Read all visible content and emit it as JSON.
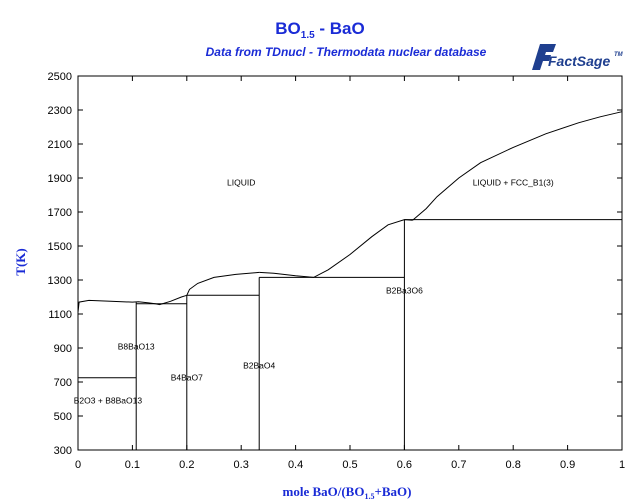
{
  "chart_data": {
    "type": "line",
    "title_main": "BO",
    "title_sub": "1.5",
    "title_rest": " - BaO",
    "subtitle": "Data from TDnucl - Thermodata nuclear database",
    "logo_text": "FactSage",
    "logo_mark": "TM",
    "xlabel_pre": "mole BaO/(BO",
    "xlabel_sub": "1.5",
    "xlabel_post": "+BaO)",
    "ylabel": "T(K)",
    "xlim": [
      0,
      1
    ],
    "ylim": [
      300,
      2500
    ],
    "xticks": [
      "0",
      "0.1",
      "0.2",
      "0.3",
      "0.4",
      "0.5",
      "0.6",
      "0.7",
      "0.8",
      "0.9",
      "1"
    ],
    "yticks": [
      "300",
      "500",
      "700",
      "900",
      "1100",
      "1300",
      "1500",
      "1700",
      "1900",
      "2100",
      "2300",
      "2500"
    ],
    "grid": false,
    "region_labels": [
      {
        "text": "LIQUID",
        "x": 0.3,
        "y": 1855
      },
      {
        "text": "LIQUID + FCC_B1(3)",
        "x": 0.8,
        "y": 1855
      },
      {
        "text": "B2Ba3O6",
        "x": 0.6,
        "y": 1220
      },
      {
        "text": "B8BaO13",
        "x": 0.107,
        "y": 890
      },
      {
        "text": "B2BaO4",
        "x": 0.333,
        "y": 780
      },
      {
        "text": "B4BaO7",
        "x": 0.2,
        "y": 710
      },
      {
        "text": "B2O3 + B8BaO13",
        "x": 0.055,
        "y": 575
      }
    ],
    "series": [
      {
        "values": [
          [
            0.0,
            1110
          ],
          [
            0.002,
            1170
          ],
          [
            0.02,
            1180
          ],
          [
            0.06,
            1175
          ],
          [
            0.1,
            1170
          ],
          [
            0.111,
            1172
          ],
          [
            0.13,
            1165
          ],
          [
            0.142,
            1160
          ],
          [
            0.15,
            1155
          ],
          [
            0.17,
            1175
          ],
          [
            0.19,
            1200
          ],
          [
            0.2,
            1210
          ]
        ]
      },
      {
        "values": [
          [
            0.2,
            1210
          ],
          [
            0.205,
            1245
          ],
          [
            0.22,
            1280
          ],
          [
            0.25,
            1315
          ],
          [
            0.29,
            1333
          ],
          [
            0.333,
            1345
          ]
        ]
      },
      {
        "values": [
          [
            0.333,
            1345
          ],
          [
            0.36,
            1340
          ],
          [
            0.4,
            1325
          ],
          [
            0.433,
            1315
          ],
          [
            0.46,
            1360
          ],
          [
            0.5,
            1450
          ],
          [
            0.54,
            1555
          ],
          [
            0.57,
            1625
          ],
          [
            0.6,
            1655
          ],
          [
            0.615,
            1652
          ]
        ]
      },
      {
        "values": [
          [
            0.615,
            1652
          ],
          [
            0.64,
            1720
          ],
          [
            0.66,
            1790
          ],
          [
            0.7,
            1900
          ],
          [
            0.74,
            1990
          ],
          [
            0.8,
            2080
          ],
          [
            0.86,
            2160
          ],
          [
            0.92,
            2225
          ],
          [
            0.96,
            2260
          ],
          [
            1.0,
            2290
          ]
        ]
      },
      {
        "values": [
          [
            0.2,
            1210
          ],
          [
            0.333,
            1210
          ]
        ]
      },
      {
        "values": [
          [
            0.333,
            1315
          ],
          [
            0.6,
            1315
          ]
        ]
      },
      {
        "values": [
          [
            0.6,
            1655
          ],
          [
            1.0,
            1655
          ]
        ]
      },
      {
        "values": [
          [
            0.0,
            725
          ],
          [
            0.107,
            725
          ]
        ]
      },
      {
        "values": [
          [
            0.107,
            1160
          ],
          [
            0.2,
            1160
          ]
        ]
      },
      {
        "values": [
          [
            0.107,
            300
          ],
          [
            0.107,
            1170
          ]
        ]
      },
      {
        "values": [
          [
            0.2,
            300
          ],
          [
            0.2,
            1210
          ]
        ]
      },
      {
        "values": [
          [
            0.333,
            300
          ],
          [
            0.333,
            1315
          ]
        ]
      },
      {
        "values": [
          [
            0.6,
            300
          ],
          [
            0.6,
            1655
          ]
        ]
      }
    ]
  }
}
